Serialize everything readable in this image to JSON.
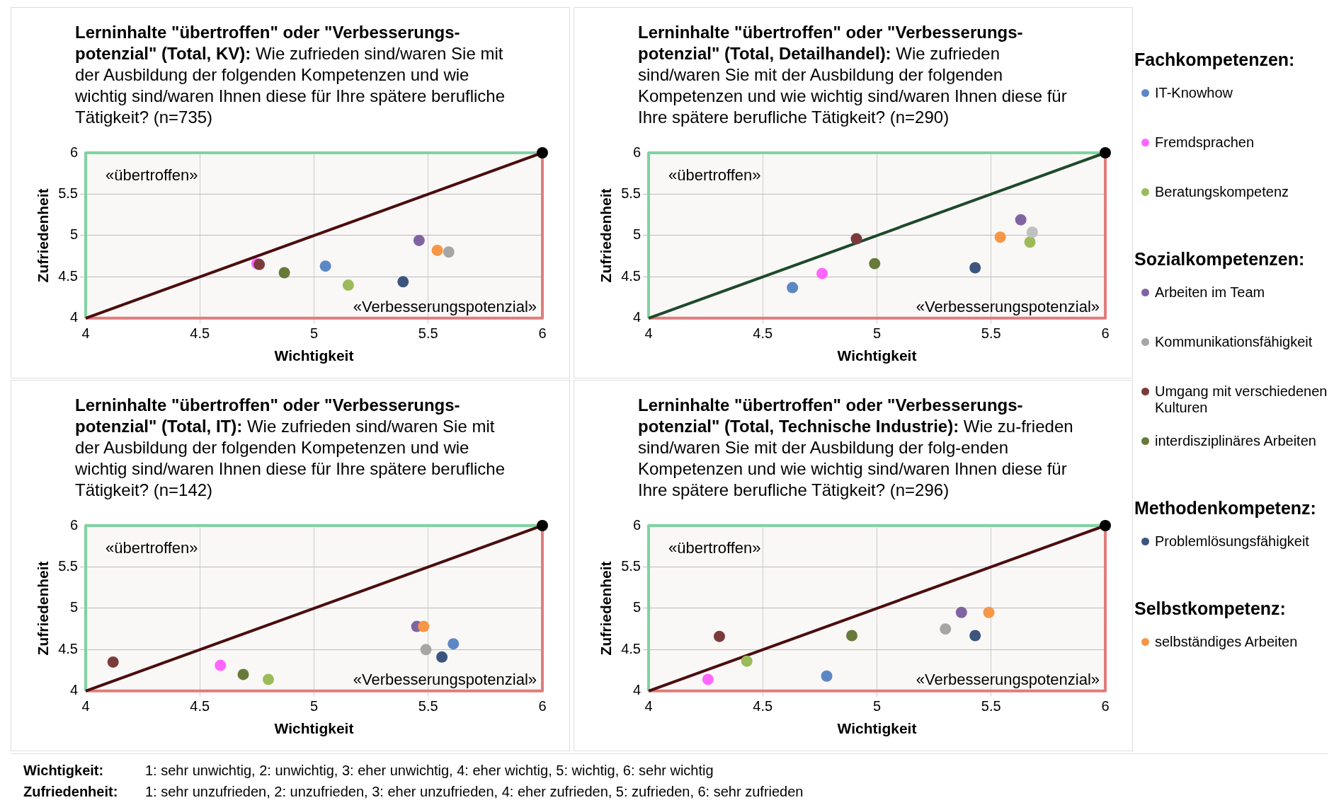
{
  "chart_data": [
    {
      "type": "scatter",
      "title": "Lerninhalte \"übertroffen\" oder \"Verbesserungs-potenzial\" (Total, KV):",
      "subtitle": "Wie zufrieden sind/waren Sie mit der Ausbildung der folgenden Kompetenzen und wie wichtig sind/waren Ihnen diese für Ihre spätere berufliche Tätigkeit? (n=735)",
      "xlabel": "Wichtigkeit",
      "ylabel": "Zufriedenheit",
      "xlim": [
        4,
        6
      ],
      "ylim": [
        4,
        6
      ],
      "xticks": [
        4,
        4.5,
        5,
        5.5,
        6
      ],
      "yticks": [
        4,
        4.5,
        5,
        5.5,
        6
      ],
      "grid": true,
      "marker": "circle",
      "legend": "right",
      "annotations": [
        "«übertroffen»",
        "«Verbesserungspotenzial»"
      ],
      "series": [
        {
          "type": "line",
          "marker": "none",
          "color": "#4a0d0d",
          "x": [
            4,
            6
          ],
          "values": [
            4,
            6
          ]
        },
        {
          "name": "IT-Knowhow",
          "color": "#5b87c5",
          "x": [
            5.05
          ],
          "values": [
            4.63
          ]
        },
        {
          "name": "Fremdsprachen",
          "color": "#ff66ff",
          "x": [
            4.75
          ],
          "values": [
            4.66
          ]
        },
        {
          "name": "Beratungskompetenz",
          "color": "#9bbb59",
          "x": [
            5.15
          ],
          "values": [
            4.4
          ]
        },
        {
          "name": "Arbeiten im Team",
          "color": "#8064a2",
          "x": [
            5.46
          ],
          "values": [
            4.94
          ]
        },
        {
          "name": "Kommunikationsfähigkeit",
          "color": "#a6a6a6",
          "x": [
            5.59
          ],
          "values": [
            4.8
          ]
        },
        {
          "name": "Umgang mit verschiedenen Kulturen",
          "color": "#7b3b3b",
          "x": [
            4.76
          ],
          "values": [
            4.65
          ]
        },
        {
          "name": "interdisziplinäres Arbeiten",
          "color": "#677a3a",
          "x": [
            4.87
          ],
          "values": [
            4.55
          ]
        },
        {
          "name": "Problemlösungsfähigkeit",
          "color": "#3b557f",
          "x": [
            5.39
          ],
          "values": [
            4.44
          ]
        },
        {
          "name": "selbständiges Arbeiten",
          "color": "#f79646",
          "x": [
            5.54
          ],
          "values": [
            4.82
          ]
        },
        {
          "color": "#000000",
          "x": [
            6
          ],
          "values": [
            6
          ]
        }
      ]
    },
    {
      "type": "scatter",
      "title": "Lerninhalte \"übertroffen\" oder \"Verbesserungs-potenzial\" (Total, Detailhandel):",
      "subtitle": "Wie zufrieden sind/waren Sie mit der Ausbildung der folgenden Kompetenzen und wie wichtig sind/waren Ihnen diese für Ihre spätere berufliche Tätigkeit? (n=290)",
      "xlabel": "Wichtigkeit",
      "ylabel": "Zufriedenheit",
      "xlim": [
        4,
        6
      ],
      "ylim": [
        4,
        6
      ],
      "xticks": [
        4,
        4.5,
        5,
        5.5,
        6
      ],
      "yticks": [
        4,
        4.5,
        5,
        5.5,
        6
      ],
      "grid": true,
      "marker": "circle",
      "annotations": [
        "«übertroffen»",
        "«Verbesserungspotenzial»"
      ],
      "series": [
        {
          "type": "line",
          "marker": "none",
          "color": "#1d4a2a",
          "x": [
            4,
            6
          ],
          "values": [
            4,
            6
          ]
        },
        {
          "color": "#5b87c5",
          "x": [
            4.63
          ],
          "values": [
            4.37
          ]
        },
        {
          "color": "#ff66ff",
          "x": [
            4.76
          ],
          "values": [
            4.54
          ]
        },
        {
          "color": "#9bbb59",
          "x": [
            5.67
          ],
          "values": [
            4.92
          ]
        },
        {
          "color": "#8064a2",
          "x": [
            5.63
          ],
          "values": [
            5.19
          ]
        },
        {
          "color": "#c0c0c0",
          "x": [
            5.68
          ],
          "values": [
            5.04
          ]
        },
        {
          "color": "#7b3b3b",
          "x": [
            4.91
          ],
          "values": [
            4.96
          ]
        },
        {
          "color": "#677a3a",
          "x": [
            4.99
          ],
          "values": [
            4.66
          ]
        },
        {
          "color": "#3b557f",
          "x": [
            5.43
          ],
          "values": [
            4.61
          ]
        },
        {
          "color": "#f79646",
          "x": [
            5.54
          ],
          "values": [
            4.98
          ]
        },
        {
          "color": "#000000",
          "x": [
            6
          ],
          "values": [
            6
          ]
        }
      ]
    },
    {
      "type": "scatter",
      "title": "Lerninhalte \"übertroffen\" oder \"Verbesserungs-potenzial\" (Total, IT):",
      "subtitle": "Wie zufrieden sind/waren Sie mit der Ausbildung der folgenden Kompetenzen und wie wichtig sind/waren Ihnen diese für Ihre spätere berufliche Tätigkeit? (n=142)",
      "xlabel": "Wichtigkeit",
      "ylabel": "Zufriedenheit",
      "xlim": [
        4,
        6
      ],
      "ylim": [
        4,
        6
      ],
      "xticks": [
        4,
        4.5,
        5,
        5.5,
        6
      ],
      "yticks": [
        4,
        4.5,
        5,
        5.5,
        6
      ],
      "grid": true,
      "marker": "circle",
      "annotations": [
        "«übertroffen»",
        "«Verbesserungspotenzial»"
      ],
      "series": [
        {
          "type": "line",
          "marker": "none",
          "color": "#4a0d0d",
          "x": [
            4,
            6
          ],
          "values": [
            4,
            6
          ]
        },
        {
          "color": "#5b87c5",
          "x": [
            5.61
          ],
          "values": [
            4.57
          ]
        },
        {
          "color": "#ff66ff",
          "x": [
            4.59
          ],
          "values": [
            4.31
          ]
        },
        {
          "color": "#9bbb59",
          "x": [
            4.8
          ],
          "values": [
            4.14
          ]
        },
        {
          "color": "#8064a2",
          "x": [
            5.45
          ],
          "values": [
            4.78
          ]
        },
        {
          "color": "#a6a6a6",
          "x": [
            5.49
          ],
          "values": [
            4.5
          ]
        },
        {
          "color": "#7b3b3b",
          "x": [
            4.12
          ],
          "values": [
            4.35
          ]
        },
        {
          "color": "#677a3a",
          "x": [
            4.69
          ],
          "values": [
            4.2
          ]
        },
        {
          "color": "#3b557f",
          "x": [
            5.56
          ],
          "values": [
            4.41
          ]
        },
        {
          "color": "#f79646",
          "x": [
            5.48
          ],
          "values": [
            4.78
          ]
        },
        {
          "color": "#000000",
          "x": [
            6
          ],
          "values": [
            6
          ]
        }
      ]
    },
    {
      "type": "scatter",
      "title": "Lerninhalte \"übertroffen\" oder \"Verbesserungs-potenzial\" (Total, Technische Industrie):",
      "subtitle": "Wie zu-frieden sind/waren Sie mit der Ausbildung der folg-enden Kompetenzen und wie wichtig sind/waren Ihnen diese für Ihre spätere berufliche Tätigkeit? (n=296)",
      "xlabel": "Wichtigkeit",
      "ylabel": "Zufriedenheit",
      "xlim": [
        4,
        6
      ],
      "ylim": [
        4,
        6
      ],
      "xticks": [
        4,
        4.5,
        5,
        5.5,
        6
      ],
      "yticks": [
        4,
        4.5,
        5,
        5.5,
        6
      ],
      "grid": true,
      "marker": "circle",
      "annotations": [
        "«übertroffen»",
        "«Verbesserungspotenzial»"
      ],
      "series": [
        {
          "type": "line",
          "marker": "none",
          "color": "#4a0d0d",
          "x": [
            4,
            6
          ],
          "values": [
            4,
            6
          ]
        },
        {
          "color": "#5b87c5",
          "x": [
            4.78
          ],
          "values": [
            4.18
          ]
        },
        {
          "color": "#ff66ff",
          "x": [
            4.26
          ],
          "values": [
            4.14
          ]
        },
        {
          "color": "#9bbb59",
          "x": [
            4.43
          ],
          "values": [
            4.36
          ]
        },
        {
          "color": "#8064a2",
          "x": [
            5.37
          ],
          "values": [
            4.95
          ]
        },
        {
          "color": "#a6a6a6",
          "x": [
            5.3
          ],
          "values": [
            4.75
          ]
        },
        {
          "color": "#7b3b3b",
          "x": [
            4.31
          ],
          "values": [
            4.66
          ]
        },
        {
          "color": "#677a3a",
          "x": [
            4.89
          ],
          "values": [
            4.67
          ]
        },
        {
          "color": "#3b557f",
          "x": [
            5.43
          ],
          "values": [
            4.67
          ]
        },
        {
          "color": "#f79646",
          "x": [
            5.49
          ],
          "values": [
            4.95
          ]
        },
        {
          "color": "#000000",
          "x": [
            6
          ],
          "values": [
            6
          ]
        }
      ]
    },
    {
      "type": "other",
      "annotations": [
        "Fachkompetenzen:",
        "Sozialkompetenzen:",
        "Methodenkompetenz:",
        "Selbstkompetenz:",
        "Wichtigkeit: 1: sehr unwichtig, 2: unwichtig, 3: eher unwichtig, 4: eher wichtig, 5: wichtig, 6: sehr wichtig",
        "Zufriedenheit: 1: sehr unzufrieden, 2: unzufrieden, 3: eher unzufrieden, 4: eher zufrieden, 5: zufrieden, 6: sehr zufrieden"
      ]
    }
  ]
}
